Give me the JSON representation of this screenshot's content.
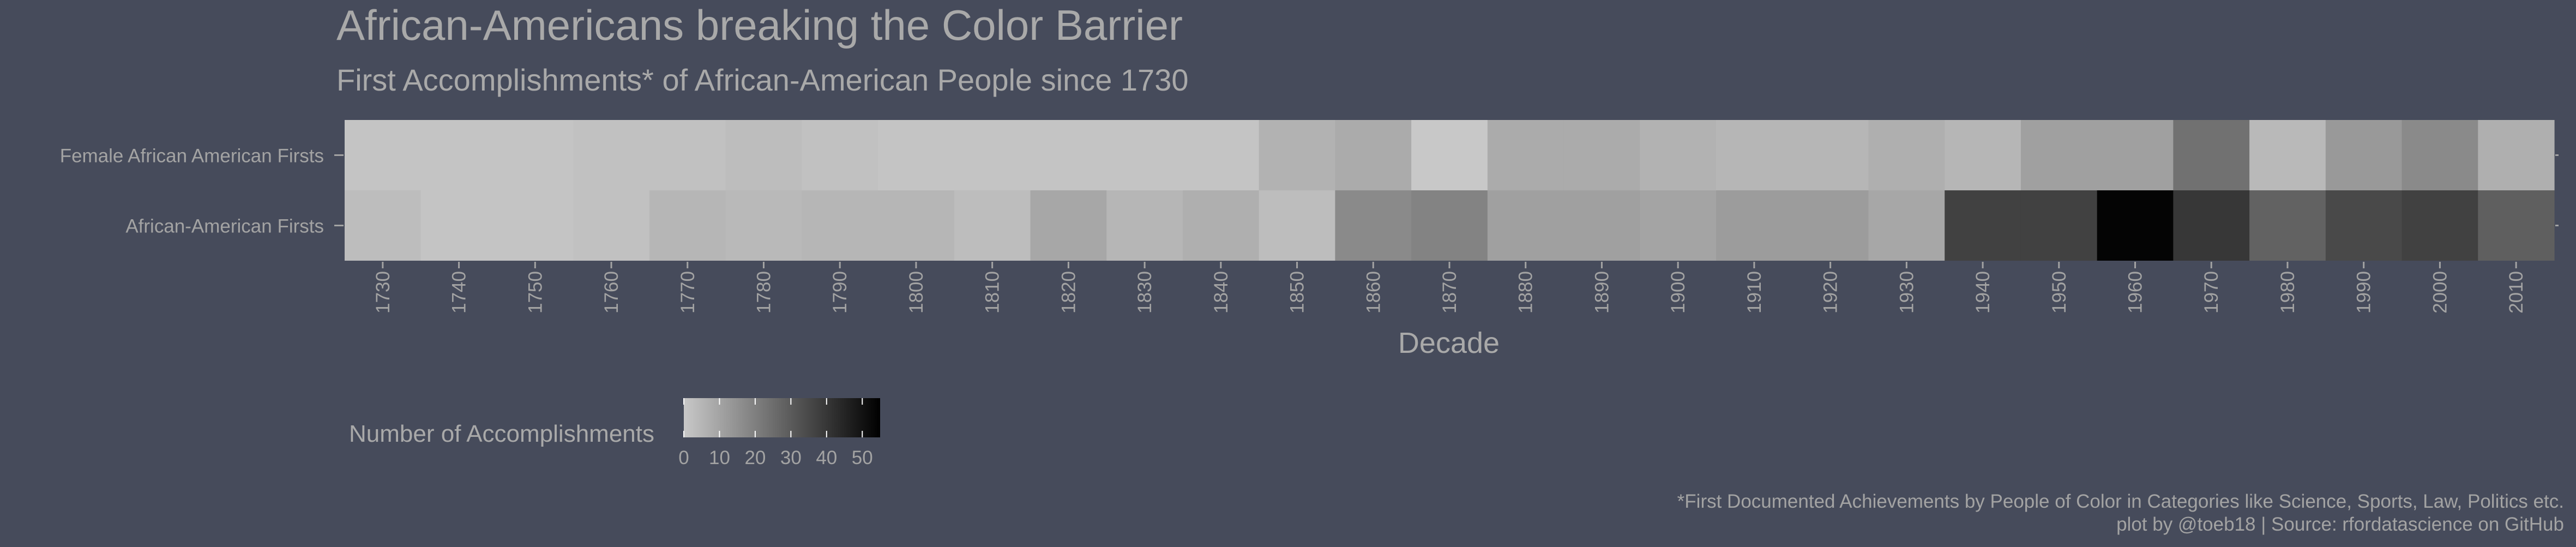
{
  "chart_data": {
    "type": "heatmap",
    "title": "African-Americans breaking the Color Barrier",
    "subtitle": "First Accomplishments* of African-American People since 1730",
    "xlabel": "Decade",
    "ylabel": "",
    "x": [
      1730,
      1740,
      1750,
      1760,
      1770,
      1780,
      1790,
      1800,
      1810,
      1820,
      1830,
      1840,
      1850,
      1860,
      1870,
      1880,
      1890,
      1900,
      1910,
      1920,
      1930,
      1940,
      1950,
      1960,
      1970,
      1980,
      1990,
      2000,
      2010
    ],
    "x_tick_labels": [
      "1730",
      "1740",
      "1750",
      "1760",
      "1770",
      "1780",
      "1790",
      "1800",
      "1810",
      "1820",
      "1830",
      "1840",
      "1850",
      "1860",
      "1870",
      "1880",
      "1890",
      "1900",
      "1910",
      "1920",
      "1930",
      "1940",
      "1950",
      "1960",
      "1970",
      "1980",
      "1990",
      "2000",
      "2010"
    ],
    "categories": [
      "Female African American Firsts",
      "African-American Firsts"
    ],
    "series": [
      {
        "name": "Female African American Firsts",
        "values": [
          1,
          1,
          1,
          2,
          2,
          3,
          2,
          1,
          1,
          1,
          1,
          1,
          6,
          8,
          0,
          8,
          8,
          6,
          5,
          5,
          7,
          5,
          11,
          11,
          24,
          4,
          13,
          17,
          7
        ]
      },
      {
        "name": "African-American Firsts",
        "values": [
          3,
          1,
          1,
          2,
          5,
          4,
          5,
          5,
          3,
          9,
          5,
          7,
          3,
          17,
          19,
          11,
          11,
          10,
          12,
          12,
          9,
          37,
          37,
          54,
          40,
          28,
          35,
          37,
          29
        ]
      }
    ],
    "legend": {
      "title": "Number of Accomplishments",
      "ticks": [
        "0",
        "10",
        "20",
        "30",
        "40",
        "50"
      ],
      "min": 0,
      "max": 55,
      "position": "bottom-left"
    },
    "colorscale": {
      "low": "#c8c8c8",
      "high": "#000000"
    },
    "grid": false,
    "caption": [
      "*First Documented Achievements by People of Color in Categories like Science, Sports, Law, Politics etc.",
      "plot by @toeb18 | Source: rfordatascience on GitHub"
    ]
  },
  "colors": {
    "background": "#464b5b",
    "text": "#a9a9a9"
  }
}
